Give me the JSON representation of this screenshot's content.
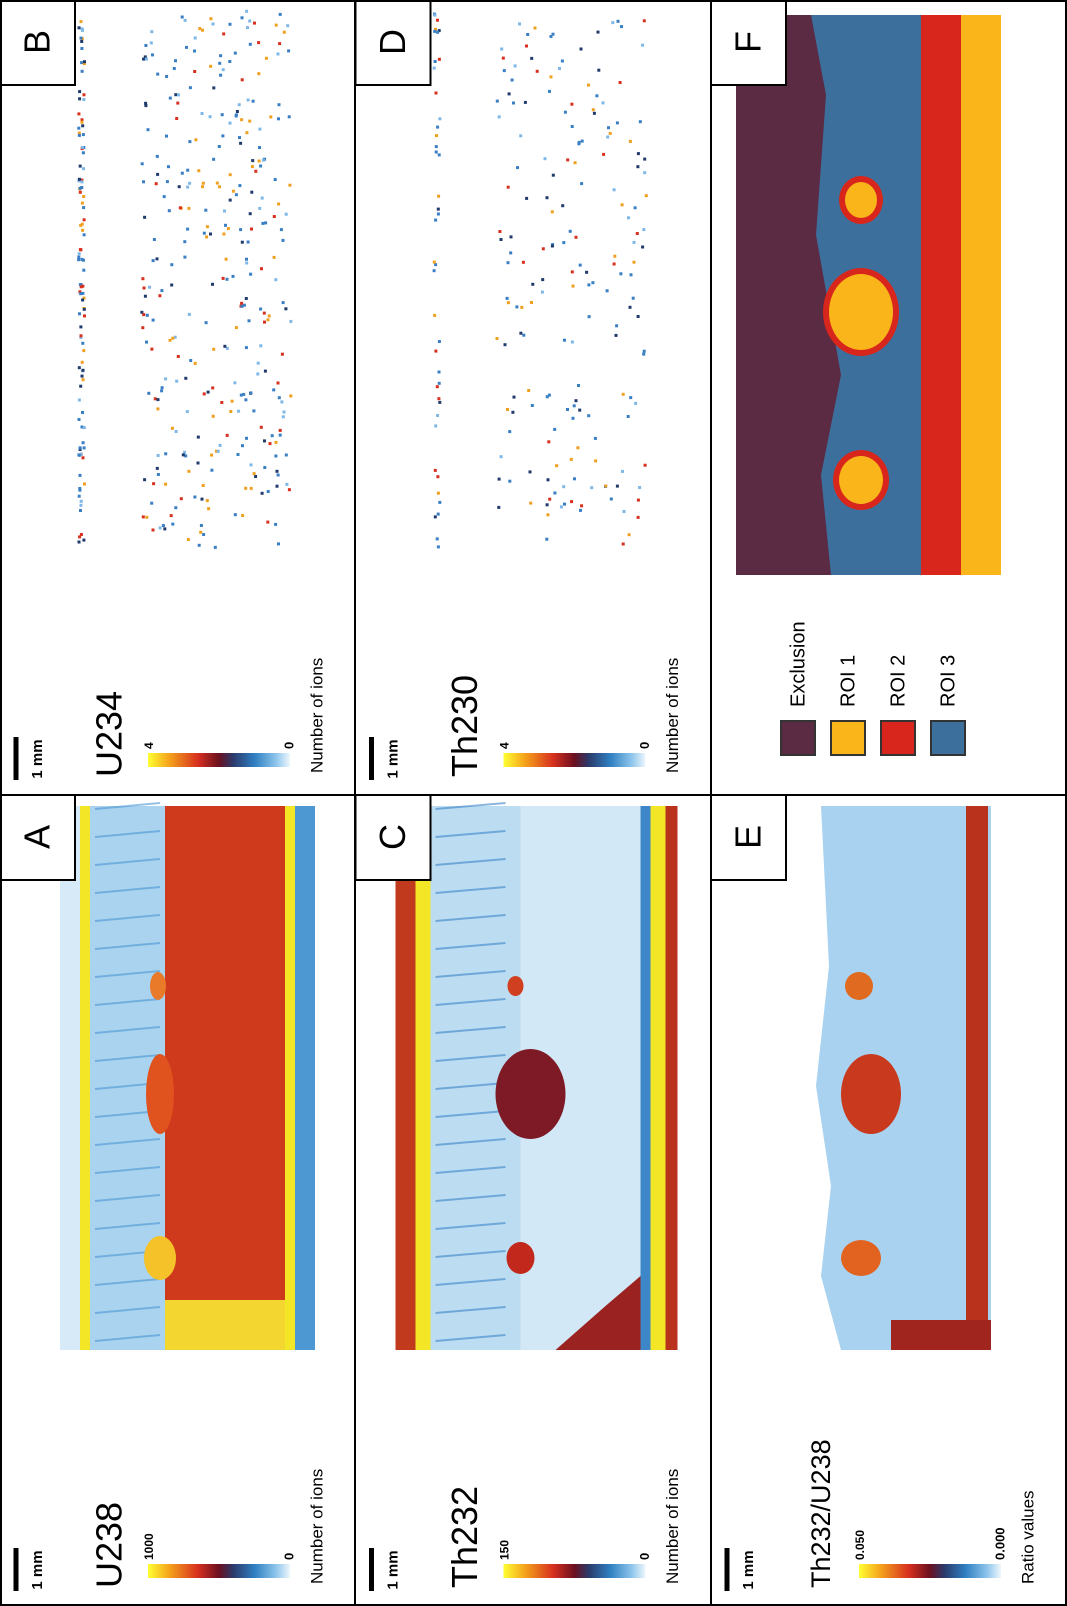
{
  "panels": [
    {
      "letter": "A",
      "scale_bar": "1 mm",
      "title": "U238",
      "colorbar_max": "1000",
      "colorbar_min": "0",
      "colorbar_label": "Number of ions"
    },
    {
      "letter": "B",
      "scale_bar": "1 mm",
      "title": "U234",
      "colorbar_max": "4",
      "colorbar_min": "0",
      "colorbar_label": "Number of ions"
    },
    {
      "letter": "C",
      "scale_bar": "1 mm",
      "title": "Th232",
      "colorbar_max": "150",
      "colorbar_min": "0",
      "colorbar_label": "Number of ions"
    },
    {
      "letter": "D",
      "scale_bar": "1 mm",
      "title": "Th230",
      "colorbar_max": "4",
      "colorbar_min": "0",
      "colorbar_label": "Number of ions"
    },
    {
      "letter": "E",
      "scale_bar": "1 mm",
      "title": "Th232/U238",
      "colorbar_max": "0.050",
      "colorbar_min": "0.000",
      "colorbar_label": "Ratio values"
    },
    {
      "letter": "F"
    }
  ],
  "legend": [
    {
      "label": "Exclusion",
      "color": "#5b2a43"
    },
    {
      "label": "ROI 1",
      "color": "#f9b51a"
    },
    {
      "label": "ROI 2",
      "color": "#d9261c"
    },
    {
      "label": "ROI 3",
      "color": "#3d6f9c"
    }
  ]
}
